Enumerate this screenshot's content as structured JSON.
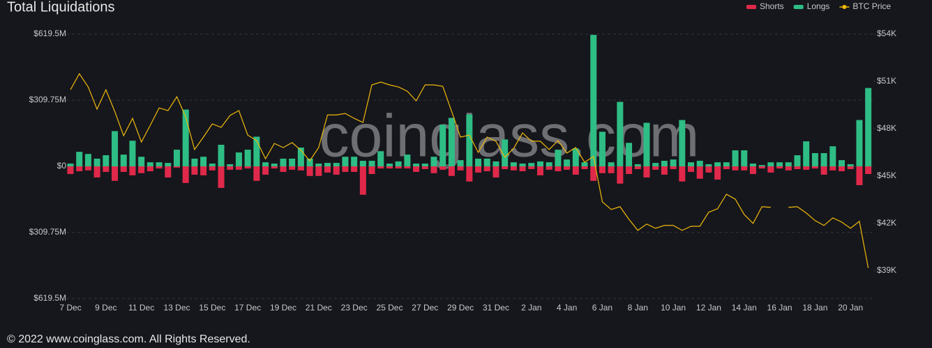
{
  "chart_data": {
    "type": "bar",
    "title": "Total Liquidations",
    "watermark": "coinglass.com",
    "footer": "© 2022 www.coinglass.com. All Rights Reserved.",
    "legend": "top-right",
    "grid": true,
    "categories": [
      "7 Dec",
      null,
      null,
      null,
      "9 Dec",
      null,
      null,
      null,
      "11 Dec",
      null,
      null,
      null,
      "13 Dec",
      null,
      null,
      null,
      "15 Dec",
      null,
      null,
      null,
      "17 Dec",
      null,
      null,
      null,
      "19 Dec",
      null,
      null,
      null,
      "21 Dec",
      null,
      null,
      null,
      "23 Dec",
      null,
      null,
      null,
      "25 Dec",
      null,
      null,
      null,
      "27 Dec",
      null,
      null,
      null,
      "29 Dec",
      null,
      null,
      null,
      "31 Dec",
      null,
      null,
      null,
      "2 Jan",
      null,
      null,
      null,
      "4 Jan",
      null,
      null,
      null,
      "6 Jan",
      null,
      null,
      null,
      "8 Jan",
      null,
      null,
      null,
      "10 Jan",
      null,
      null,
      null,
      "12 Jan",
      null,
      null,
      null,
      "14 Jan",
      null,
      null,
      null,
      "16 Jan",
      null,
      null,
      null,
      "18 Jan",
      null,
      null,
      null,
      "20 Jan",
      null,
      null
    ],
    "ylim": [
      -619.5,
      619.5
    ],
    "yticks": [
      {
        "value": 619.5,
        "label": "$619.5M"
      },
      {
        "value": 309.75,
        "label": "$309.75M"
      },
      {
        "value": 0,
        "label": "$0"
      },
      {
        "value": -309.75,
        "label": "$309.75M"
      },
      {
        "value": -619.5,
        "label": "$619.5M"
      }
    ],
    "y2lim": [
      37235,
      54000
    ],
    "y2ticks": [
      {
        "value": 54000,
        "label": "$54K"
      },
      {
        "value": 51000,
        "label": "$51K"
      },
      {
        "value": 48000,
        "label": "$48K"
      },
      {
        "value": 45000,
        "label": "$45K"
      },
      {
        "value": 42000,
        "label": "$42K"
      },
      {
        "value": 39000,
        "label": "$39K"
      }
    ],
    "series": [
      {
        "name": "Shorts",
        "type": "bar",
        "axis": "y",
        "color": "#e0294a",
        "values": [
          -36,
          -23,
          -19,
          -52,
          -26,
          -68,
          -26,
          -42,
          -32,
          -23,
          -10,
          -52,
          -6,
          -78,
          -39,
          -42,
          -19,
          -101,
          -16,
          -16,
          -10,
          -68,
          -39,
          -10,
          -26,
          -16,
          -19,
          -45,
          -45,
          -29,
          -39,
          -26,
          -26,
          -133,
          -36,
          -10,
          -10,
          -10,
          -10,
          -26,
          -13,
          -32,
          -16,
          -45,
          -19,
          -71,
          -29,
          -23,
          -52,
          -13,
          -19,
          -23,
          -13,
          -42,
          -16,
          -23,
          -16,
          -39,
          -13,
          -68,
          -32,
          -32,
          -81,
          -36,
          -13,
          -52,
          -16,
          -39,
          -13,
          -71,
          -26,
          -58,
          -29,
          -62,
          -13,
          -19,
          -19,
          -36,
          -10,
          -29,
          -10,
          -19,
          -13,
          -16,
          -10,
          -39,
          -19,
          -23,
          -13,
          -88,
          -36
        ]
      },
      {
        "name": "Longs",
        "type": "bar",
        "axis": "y",
        "color": "#2ebd85",
        "values": [
          13,
          68,
          58,
          36,
          52,
          165,
          55,
          120,
          45,
          19,
          19,
          16,
          78,
          266,
          36,
          45,
          13,
          101,
          10,
          65,
          78,
          139,
          19,
          13,
          36,
          36,
          88,
          36,
          13,
          16,
          16,
          45,
          45,
          26,
          26,
          71,
          13,
          23,
          55,
          13,
          13,
          45,
          195,
          227,
          29,
          243,
          36,
          36,
          23,
          126,
          19,
          13,
          16,
          23,
          19,
          78,
          32,
          84,
          19,
          616,
          162,
          19,
          302,
          110,
          10,
          204,
          16,
          26,
          32,
          217,
          19,
          26,
          10,
          19,
          19,
          75,
          75,
          13,
          6,
          19,
          19,
          19,
          52,
          117,
          62,
          62,
          94,
          29,
          10,
          217,
          367
        ]
      },
      {
        "name": "BTC Price",
        "type": "line",
        "axis": "y2",
        "color": "#f0b90b",
        "values": [
          50470,
          51490,
          50650,
          49240,
          50470,
          49100,
          47560,
          48660,
          47160,
          48220,
          49320,
          49150,
          50030,
          48750,
          46680,
          47470,
          48310,
          48090,
          48840,
          49150,
          47600,
          47250,
          46100,
          47070,
          46810,
          47120,
          46630,
          45970,
          46810,
          48880,
          48880,
          48970,
          48660,
          48400,
          50780,
          50960,
          50780,
          50650,
          50380,
          49770,
          50780,
          50780,
          50690,
          49100,
          47470,
          47600,
          46500,
          47470,
          47210,
          46190,
          46760,
          47740,
          47210,
          47210,
          46680,
          47250,
          46460,
          46810,
          45880,
          46240,
          43370,
          42880,
          43060,
          42260,
          41560,
          41960,
          41690,
          41870,
          41870,
          41560,
          41820,
          41820,
          42710,
          42930,
          43850,
          43540,
          42570,
          42000,
          43060,
          43020,
          null,
          43020,
          43060,
          42660,
          42180,
          41870,
          42350,
          42090,
          41690,
          42130,
          39180
        ]
      }
    ]
  }
}
